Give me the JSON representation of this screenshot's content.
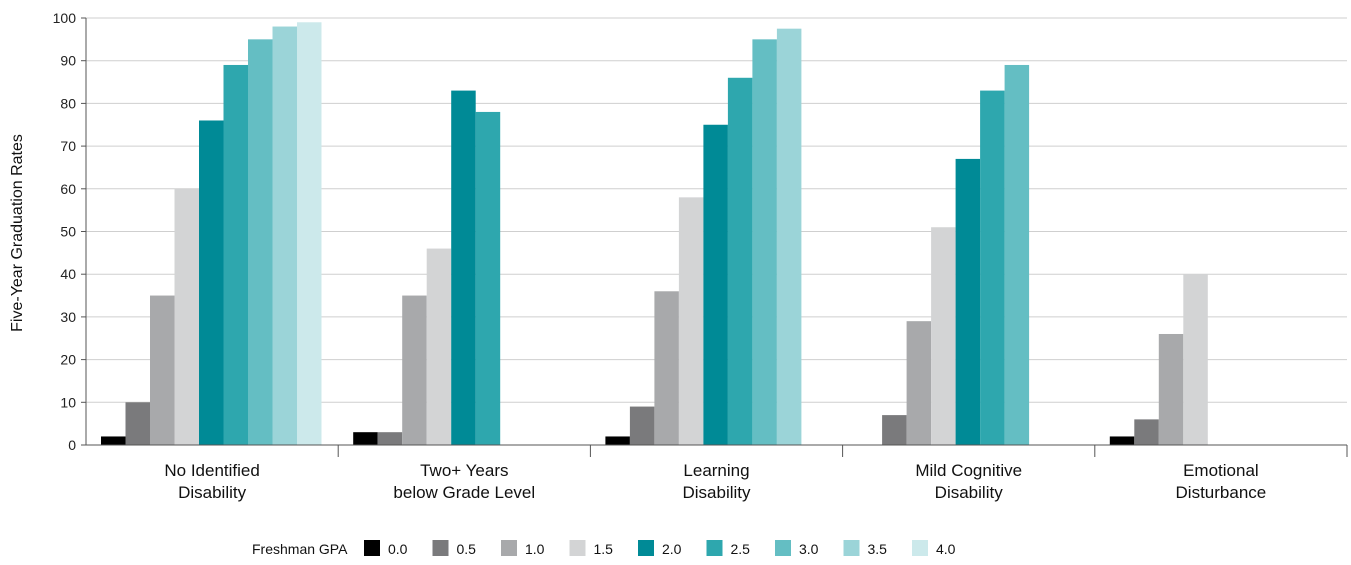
{
  "chart_data": {
    "type": "bar",
    "ylabel": "Five-Year Graduation Rates",
    "ylim": [
      0,
      100
    ],
    "yticks": [
      0,
      10,
      20,
      30,
      40,
      50,
      60,
      70,
      80,
      90,
      100
    ],
    "categories": [
      [
        "No Identified",
        "Disability"
      ],
      [
        "Two+ Years",
        "below Grade Level"
      ],
      [
        "Learning",
        "Disability"
      ],
      [
        "Mild Cognitive",
        "Disability"
      ],
      [
        "Emotional",
        "Disturbance"
      ]
    ],
    "legend_title": "Freshman GPA",
    "legend_position": "bottom",
    "series": [
      {
        "name": "0.0",
        "color": "#000000",
        "values": [
          2,
          3,
          2,
          null,
          2
        ]
      },
      {
        "name": "0.5",
        "color": "#7a7a7c",
        "values": [
          10,
          3,
          9,
          7,
          6
        ]
      },
      {
        "name": "1.0",
        "color": "#a8a9ab",
        "values": [
          35,
          35,
          36,
          29,
          26
        ]
      },
      {
        "name": "1.5",
        "color": "#d3d4d5",
        "values": [
          60,
          46,
          58,
          51,
          40
        ]
      },
      {
        "name": "2.0",
        "color": "#008a96",
        "values": [
          76,
          83,
          75,
          67,
          null
        ]
      },
      {
        "name": "2.5",
        "color": "#2ea7ae",
        "values": [
          89,
          78,
          86,
          83,
          null
        ]
      },
      {
        "name": "3.0",
        "color": "#64bec3",
        "values": [
          95,
          null,
          95,
          89,
          null
        ]
      },
      {
        "name": "3.5",
        "color": "#9bd4d8",
        "values": [
          98,
          null,
          97.5,
          null,
          null
        ]
      },
      {
        "name": "4.0",
        "color": "#cce9eb",
        "values": [
          99,
          null,
          null,
          null,
          null
        ]
      }
    ]
  }
}
